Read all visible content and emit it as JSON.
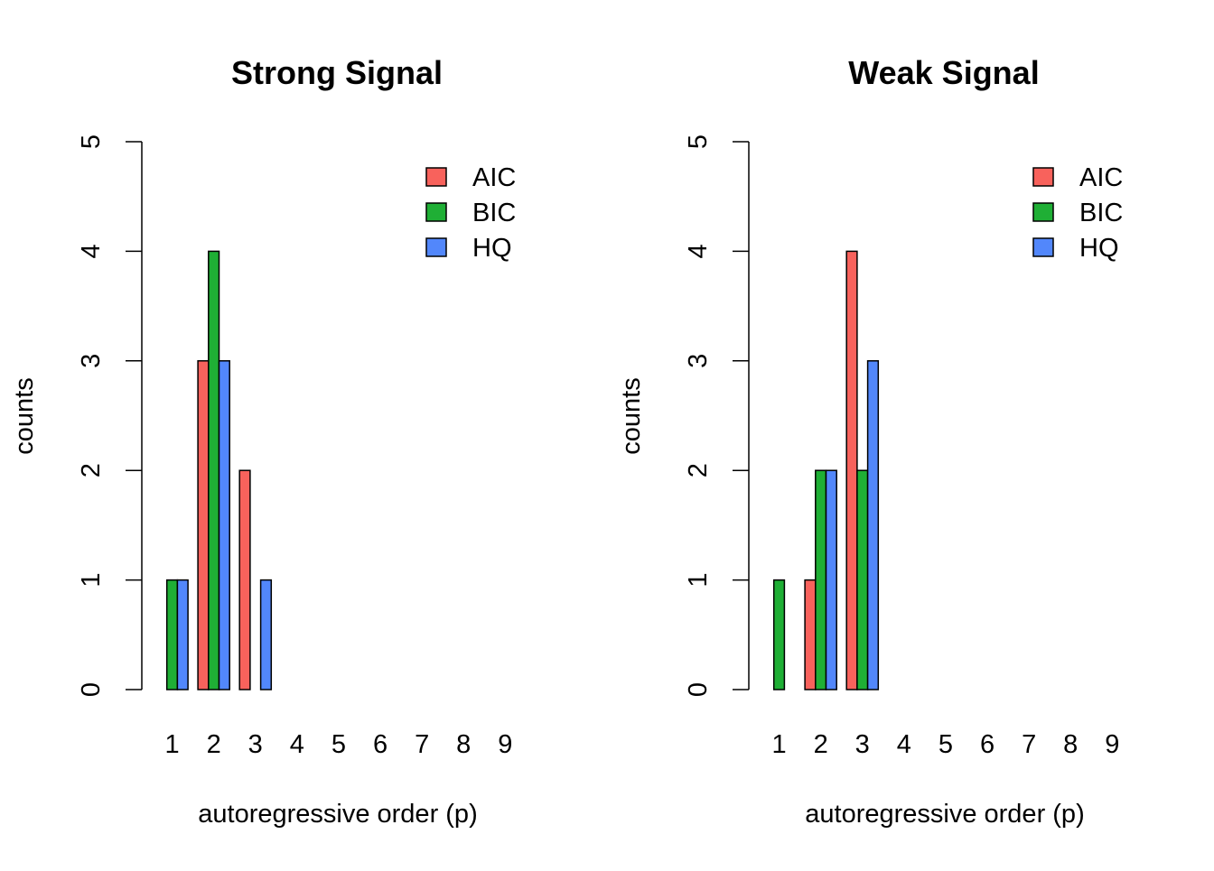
{
  "chart_data": [
    {
      "type": "bar",
      "title": "Strong Signal",
      "xlabel": "autoregressive order (p)",
      "ylabel": "counts",
      "ylim": [
        0,
        5
      ],
      "yticks": [
        "0",
        "1",
        "2",
        "3",
        "4",
        "5"
      ],
      "categories": [
        "1",
        "2",
        "3",
        "4",
        "5",
        "6",
        "7",
        "8",
        "9"
      ],
      "series": [
        {
          "name": "AIC",
          "color": "#F8625C",
          "values": [
            0,
            3,
            2,
            0,
            0,
            0,
            0,
            0,
            0
          ]
        },
        {
          "name": "BIC",
          "color": "#1FAF35",
          "values": [
            1,
            4,
            0,
            0,
            0,
            0,
            0,
            0,
            0
          ]
        },
        {
          "name": "HQ",
          "color": "#5287FB",
          "values": [
            1,
            3,
            1,
            0,
            0,
            0,
            0,
            0,
            0
          ]
        }
      ],
      "legend": "top-right",
      "grid": false
    },
    {
      "type": "bar",
      "title": "Weak Signal",
      "xlabel": "autoregressive order (p)",
      "ylabel": "counts",
      "ylim": [
        0,
        5
      ],
      "yticks": [
        "0",
        "1",
        "2",
        "3",
        "4",
        "5"
      ],
      "categories": [
        "1",
        "2",
        "3",
        "4",
        "5",
        "6",
        "7",
        "8",
        "9"
      ],
      "series": [
        {
          "name": "AIC",
          "color": "#F8625C",
          "values": [
            0,
            1,
            4,
            0,
            0,
            0,
            0,
            0,
            0
          ]
        },
        {
          "name": "BIC",
          "color": "#1FAF35",
          "values": [
            1,
            2,
            2,
            0,
            0,
            0,
            0,
            0,
            0
          ]
        },
        {
          "name": "HQ",
          "color": "#5287FB",
          "values": [
            0,
            2,
            3,
            0,
            0,
            0,
            0,
            0,
            0
          ]
        }
      ],
      "legend": "top-right",
      "grid": false
    }
  ]
}
